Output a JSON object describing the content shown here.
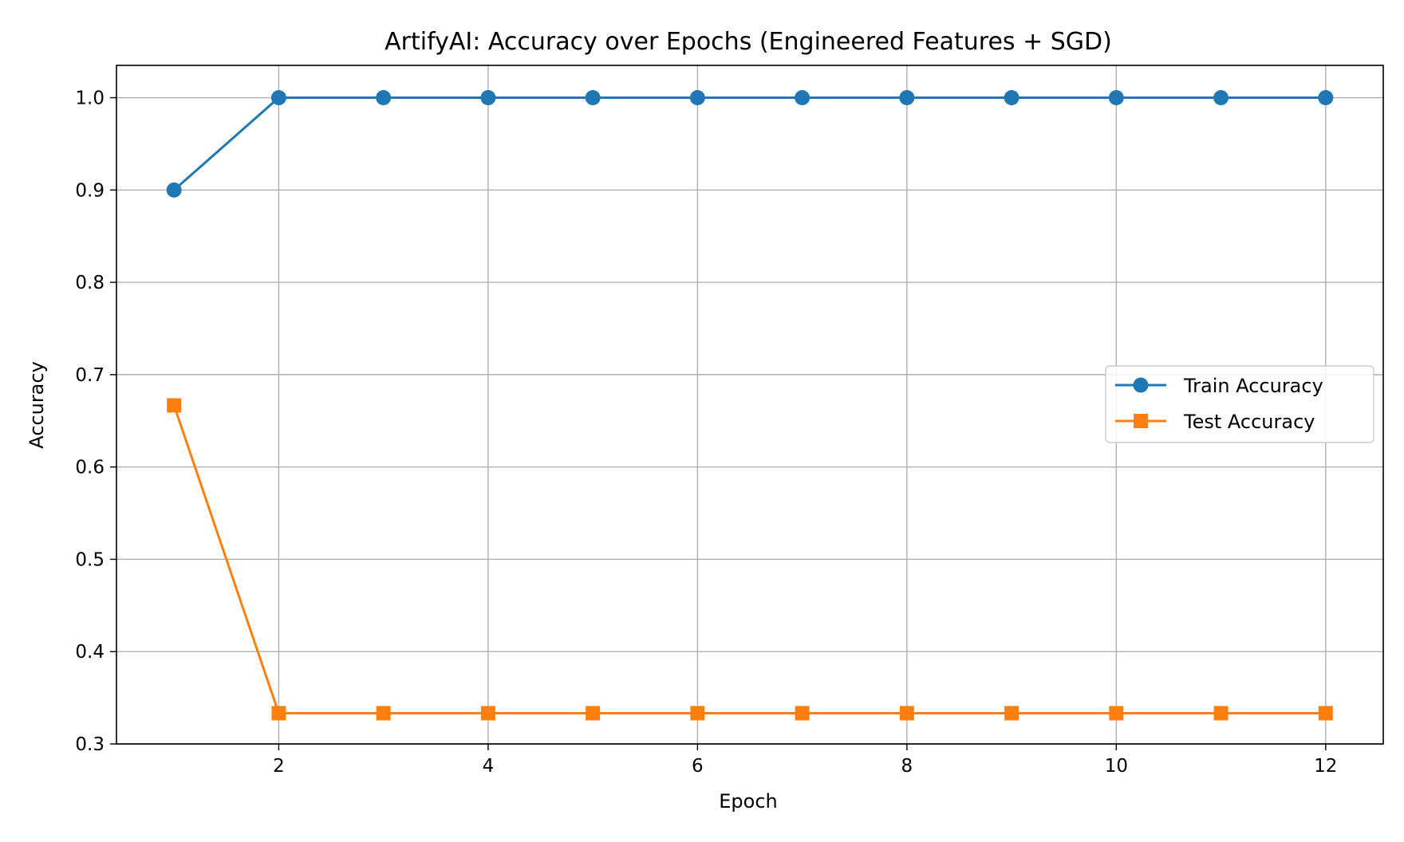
{
  "chart_data": {
    "type": "line",
    "title": "ArtifyAI: Accuracy over Epochs (Engineered Features + SGD)",
    "xlabel": "Epoch",
    "ylabel": "Accuracy",
    "x": [
      1,
      2,
      3,
      4,
      5,
      6,
      7,
      8,
      9,
      10,
      11,
      12
    ],
    "xlim": [
      0.45,
      12.55
    ],
    "ylim": [
      0.3,
      1.035
    ],
    "xticks": [
      2,
      4,
      6,
      8,
      10,
      12
    ],
    "xtick_labels": [
      "2",
      "4",
      "6",
      "8",
      "10",
      "12"
    ],
    "yticks": [
      0.3,
      0.4,
      0.5,
      0.6,
      0.7,
      0.8,
      0.9,
      1.0
    ],
    "ytick_labels": [
      "0.3",
      "0.4",
      "0.5",
      "0.6",
      "0.7",
      "0.8",
      "0.9",
      "1.0"
    ],
    "grid": true,
    "legend_position": "center-right",
    "series": [
      {
        "name": "Train Accuracy",
        "color": "#1f77b4",
        "marker": "circle",
        "values": [
          0.9,
          1.0,
          1.0,
          1.0,
          1.0,
          1.0,
          1.0,
          1.0,
          1.0,
          1.0,
          1.0,
          1.0
        ]
      },
      {
        "name": "Test Accuracy",
        "color": "#ff7f0e",
        "marker": "square",
        "values": [
          0.6667,
          0.3333,
          0.3333,
          0.3333,
          0.3333,
          0.3333,
          0.3333,
          0.3333,
          0.3333,
          0.3333,
          0.3333,
          0.3333
        ]
      }
    ]
  }
}
